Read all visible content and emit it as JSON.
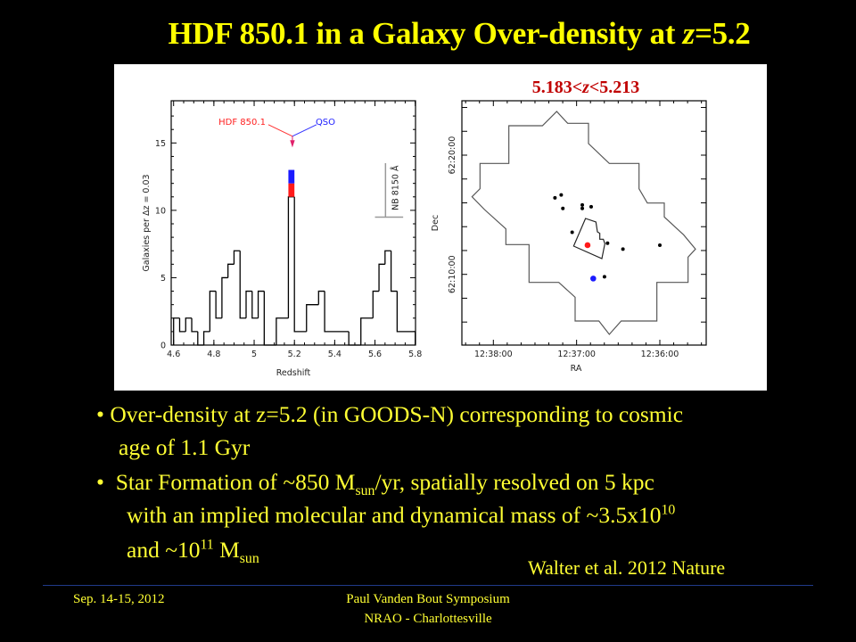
{
  "title": {
    "prefix": "HDF 850.1 in a Galaxy Over-density at ",
    "z": "z",
    "suffix": "=5.2"
  },
  "bullets": [
    {
      "bullet": "•",
      "line1": "Over-density at z=5.2 (in GOODS-N) corresponding to cosmic",
      "line2": "age of 1.1 Gyr"
    },
    {
      "bullet": "•",
      "line1a": "Star Formation of ~850 M",
      "line1_sub": "sun",
      "line1b": "/yr, spatially resolved on 5 kpc",
      "line2a": "with an implied molecular and dynamical mass of ~3.5x10",
      "line2_sup": "10",
      "line3a": "and  ~10",
      "line3_sup": "11",
      "line3b": " M",
      "line3_sub": "sun"
    }
  ],
  "citation": "Walter et al. 2012 Nature",
  "footer": {
    "date": "Sep. 14-15, 2012",
    "event": "Paul Vanden Bout Symposium",
    "venue": "NRAO - Charlottesville"
  },
  "colors": {
    "text": "#ffff33",
    "subtitle": "#c00000",
    "hdf": "#ff2020",
    "qso": "#2020ff",
    "rule": "#203a8a"
  },
  "chart_data": [
    {
      "type": "bar",
      "subtype": "step-histogram",
      "xlabel": "Redshift",
      "ylabel": "Galaxies per Δz = 0.03",
      "xlim": [
        4.6,
        5.8
      ],
      "ylim": [
        0,
        18
      ],
      "xticks": [
        "4.6",
        "4.8",
        "5",
        "5.2",
        "5.4",
        "5.6",
        "5.8"
      ],
      "yticks": [
        "0",
        "5",
        "10",
        "15"
      ],
      "bin_edges": [
        4.6,
        4.63,
        4.66,
        4.69,
        4.72,
        4.75,
        4.78,
        4.81,
        4.84,
        4.87,
        4.9,
        4.93,
        4.96,
        4.99,
        5.02,
        5.05,
        5.11,
        5.17,
        5.2,
        5.26,
        5.32,
        5.35,
        5.47,
        5.53,
        5.59,
        5.62,
        5.65,
        5.68,
        5.71,
        5.8
      ],
      "values": [
        2,
        1,
        2,
        1,
        0,
        1,
        4,
        2,
        5,
        6,
        7,
        2,
        4,
        2,
        4,
        0,
        2,
        11,
        1,
        3,
        4,
        1,
        0,
        2,
        4,
        6,
        7,
        4,
        1
      ],
      "stacked_extra": {
        "bin": [
          5.17,
          5.2
        ],
        "hdf": [
          11,
          12
        ],
        "qso": [
          12,
          13
        ]
      },
      "annotations": {
        "hdf_label": "HDF 850.1",
        "qso_label": "QSO",
        "arrow_z": 5.19,
        "filter_label": "NB 8150 Å",
        "filter_range": [
          5.6,
          5.74
        ],
        "filter_level": 9.5
      }
    },
    {
      "type": "scatter",
      "title": "5.183<z<5.213",
      "title_parts": {
        "a": "5.183<",
        "z": "z",
        "b": "<5.213"
      },
      "xlabel": "RA",
      "ylabel": "Dec",
      "xticks": [
        "12:38:00",
        "12:37:00",
        "12:36:00"
      ],
      "yticks": [
        "62:20:00",
        "62:10:00"
      ],
      "galaxies": [
        [
          "12:37:15.6",
          "62:16:25"
        ],
        [
          "12:37:11.1",
          "62:16:40"
        ],
        [
          "12:37:09.9",
          "62:15:32"
        ],
        [
          "12:36:55.9",
          "62:15:49"
        ],
        [
          "12:36:55.9",
          "62:15:32"
        ],
        [
          "12:36:49.5",
          "62:15:40"
        ],
        [
          "12:37:03.2",
          "62:13:32"
        ],
        [
          "12:36:37.7",
          "62:12:37"
        ],
        [
          "12:36:26.6",
          "62:12:07"
        ],
        [
          "12:36:00.0",
          "62:12:27"
        ],
        [
          "12:36:39.9",
          "62:09:48"
        ]
      ],
      "hdf850_1": [
        "12:36:52.1",
        "62:12:27"
      ],
      "qso": [
        "12:36:48.0",
        "62:09:39"
      ]
    }
  ]
}
